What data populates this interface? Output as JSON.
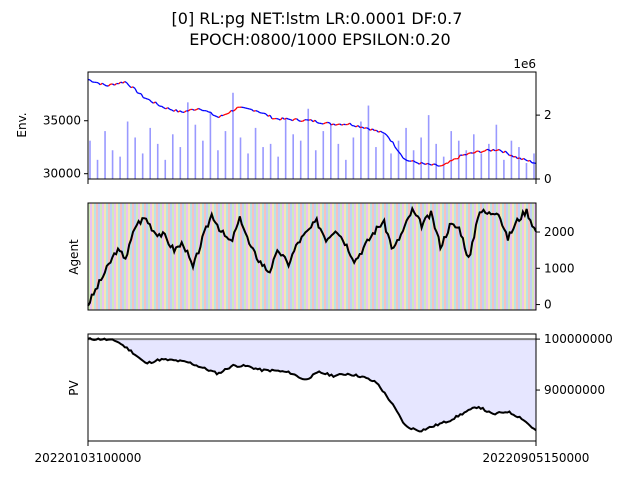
{
  "chart_data": {
    "type": "line",
    "title_line1": "[0] RL:pg NET:lstm LR:0.0001 DF:0.7",
    "title_line2": "EPOCH:0800/1000 EPSILON:0.20",
    "x_start_label": "20220103100000",
    "x_end_label": "20220905150000",
    "panels": [
      {
        "name": "env",
        "ylabel": "Env.",
        "left_ticks": [
          "35000",
          "30000"
        ],
        "left_tick_values": [
          35000,
          30000
        ],
        "ylim_left": [
          29500,
          39600
        ],
        "right_ticks": [
          "2",
          "0"
        ],
        "right_tick_values": [
          2,
          0
        ],
        "ylim_right": [
          0,
          3.35
        ],
        "right_offset_label": "1e6",
        "price_series": {
          "name": "price",
          "values": [
            38900,
            38300,
            38700,
            37200,
            36300,
            35800,
            36200,
            35300,
            36200,
            36000,
            35200,
            35100,
            35000,
            34700,
            34700,
            34300,
            33700,
            31300,
            30900,
            30700,
            31700,
            32100,
            32300,
            31500,
            31000
          ]
        },
        "volume_series": {
          "name": "volume",
          "values": [
            1.2,
            0.6,
            1.5,
            0.9,
            0.7,
            1.8,
            1.3,
            0.8,
            1.6,
            1.1,
            0.6,
            1.4,
            1.0,
            2.4,
            1.7,
            1.2,
            2.1,
            0.9,
            1.5,
            2.7,
            1.3,
            0.8,
            1.6,
            1.0,
            1.1,
            0.7,
            1.9,
            1.4,
            1.2,
            2.2,
            0.9,
            1.5,
            1.7,
            1.1,
            0.6,
            1.3,
            1.8,
            2.3,
            1.0,
            1.4,
            0.8,
            1.2,
            1.6,
            0.9,
            1.3,
            2.0,
            1.1,
            0.7,
            1.5,
            1.2,
            0.9,
            1.4,
            0.8,
            1.1,
            1.7,
            0.6,
            1.2,
            1.0,
            0.5,
            0.8
          ]
        }
      },
      {
        "name": "agent",
        "ylabel": "Agent",
        "right_ticks": [
          "2000",
          "1000",
          "0"
        ],
        "right_tick_values": [
          2000,
          1000,
          0
        ],
        "ylim_right": [
          -150,
          2800
        ],
        "series": {
          "name": "agent position",
          "values": [
            0,
            500,
            1000,
            1500,
            1300,
            2200,
            2400,
            2000,
            1900,
            1500,
            1700,
            1000,
            1800,
            2500,
            2000,
            1700,
            2400,
            1600,
            1200,
            900,
            1500,
            1100,
            1700,
            2000,
            2300,
            1800,
            2100,
            1700,
            1200,
            1600,
            2000,
            2300,
            1500,
            2000,
            2600,
            2200,
            2500,
            1600,
            2200,
            2100,
            1200,
            2600,
            2500,
            2600,
            1800,
            2300,
            2600,
            2000
          ]
        }
      },
      {
        "name": "pv",
        "ylabel": "PV",
        "right_ticks": [
          "100000000",
          "90000000"
        ],
        "right_tick_values": [
          100000000,
          90000000
        ],
        "ylim_right": [
          80000000,
          101000000
        ],
        "baseline": 100000000,
        "series": {
          "name": "portfolio value",
          "values": [
            100000000,
            100000000,
            99600000,
            97600000,
            95200000,
            96000000,
            95800000,
            95400000,
            94300000,
            93200000,
            94800000,
            94700000,
            93900000,
            93800000,
            93400000,
            92000000,
            93500000,
            92800000,
            93200000,
            92600000,
            91400000,
            87500000,
            82800000,
            82000000,
            83000000,
            84000000,
            85500000,
            86800000,
            85200000,
            85800000,
            84500000,
            82000000
          ]
        }
      }
    ]
  },
  "colors": {
    "price_up": "#ff0000",
    "price_down": "#0000ff",
    "volume": "#9999ff",
    "agent_line": "#000000",
    "pv_fill": "#e6e6ff",
    "pv_baseline": "#808080"
  }
}
